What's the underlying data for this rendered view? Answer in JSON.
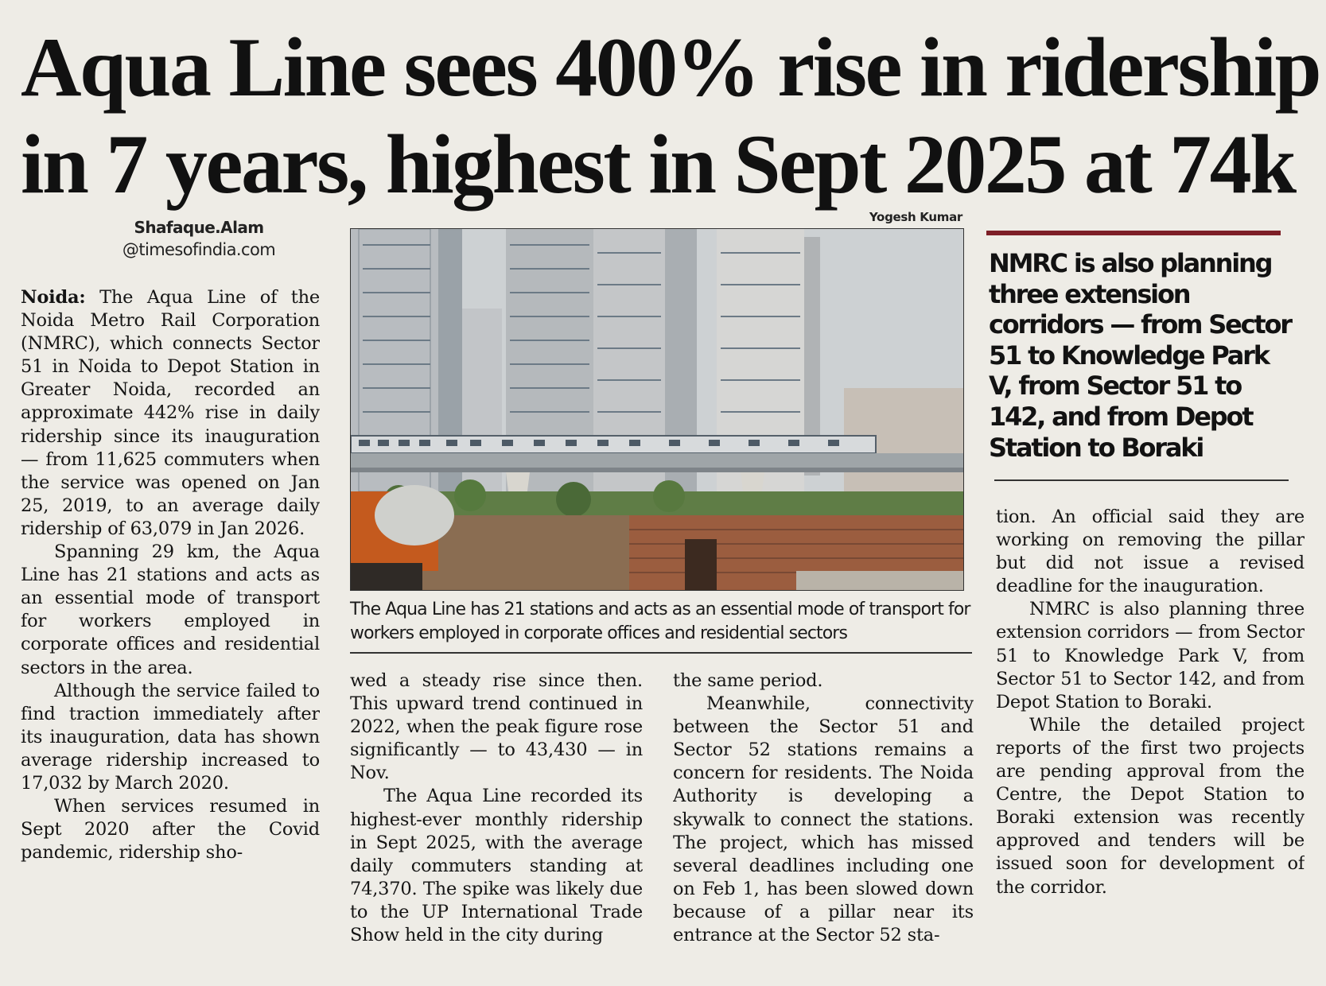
{
  "headline": {
    "line1": "Aqua Line sees 400% rise in ridership",
    "line2": "in 7 years, highest in Sept 2025 at 74k"
  },
  "byline": {
    "author": "Shafaque.Alam",
    "email": "@timesofindia.com"
  },
  "photo_credit": "Yogesh Kumar",
  "caption": "The Aqua Line has 21 stations and acts as an essential mode of transport for workers employed in corporate offices and residential sectors",
  "pull_quote": "NMRC is also planning three extension corridors — from Sector 51 to Knowledge Park V, from Sector 51 to 142, and from Depot Station to Boraki",
  "body": {
    "dateline": "Noida:",
    "p1": "The Aqua Line of the Noida Metro Rail Corporation (NMRC), which connects Sector 51 in Noida to Depot Station in Greater Noida, recorded an approximate 442% rise in daily ridership since its inauguration — from 11,625 commuters when the service was opened on Jan 25, 2019, to an average daily ridership of 63,079 in Jan 2026.",
    "p2": "Spanning 29 km, the Aqua Line has 21 stations and acts as an essential mode of transport for workers employed in corporate offices and residential sectors in the area.",
    "p3": "Although the service failed to find traction immediately after its inauguration, data has shown average ridership increased to 17,032 by March 2020.",
    "p4_a": "When services resumed in Sept 2020 after the Covid pandemic, ridership sho-",
    "p4_b": "wed a steady rise since then. This upward trend continued in 2022, when the peak figure rose significantly — to 43,430 — in Nov.",
    "p5": "The Aqua Line recorded its highest-ever monthly ridership in Sept 2025, with the average daily commuters standing at 74,370. The spike was likely due to the UP International Trade Show held in the city during",
    "p5_end": "the same period.",
    "p6": "Meanwhile, connectivity between the Sector 51 and Sector 52 stations remains a concern for residents. The Noida Authority is developing a skywalk to connect the stations. The project, which has missed several deadlines including one on Feb 1, has been slowed down because of a pillar near its entrance at the Sector 52 sta-",
    "p6_end": "tion. An official said they are working on removing the pillar but did not issue a revised deadline for the inauguration.",
    "p7": "NMRC is also planning three extension corridors — from Sector 51 to Knowledge Park V, from Sector 51 to Sector 142, and from Depot Station to Boraki.",
    "p8": "While the detailed project reports of the first two projects are pending approval from the Centre, the Depot Station to Boraki extension was recently approved and tenders will be issued soon for development of the corridor."
  }
}
